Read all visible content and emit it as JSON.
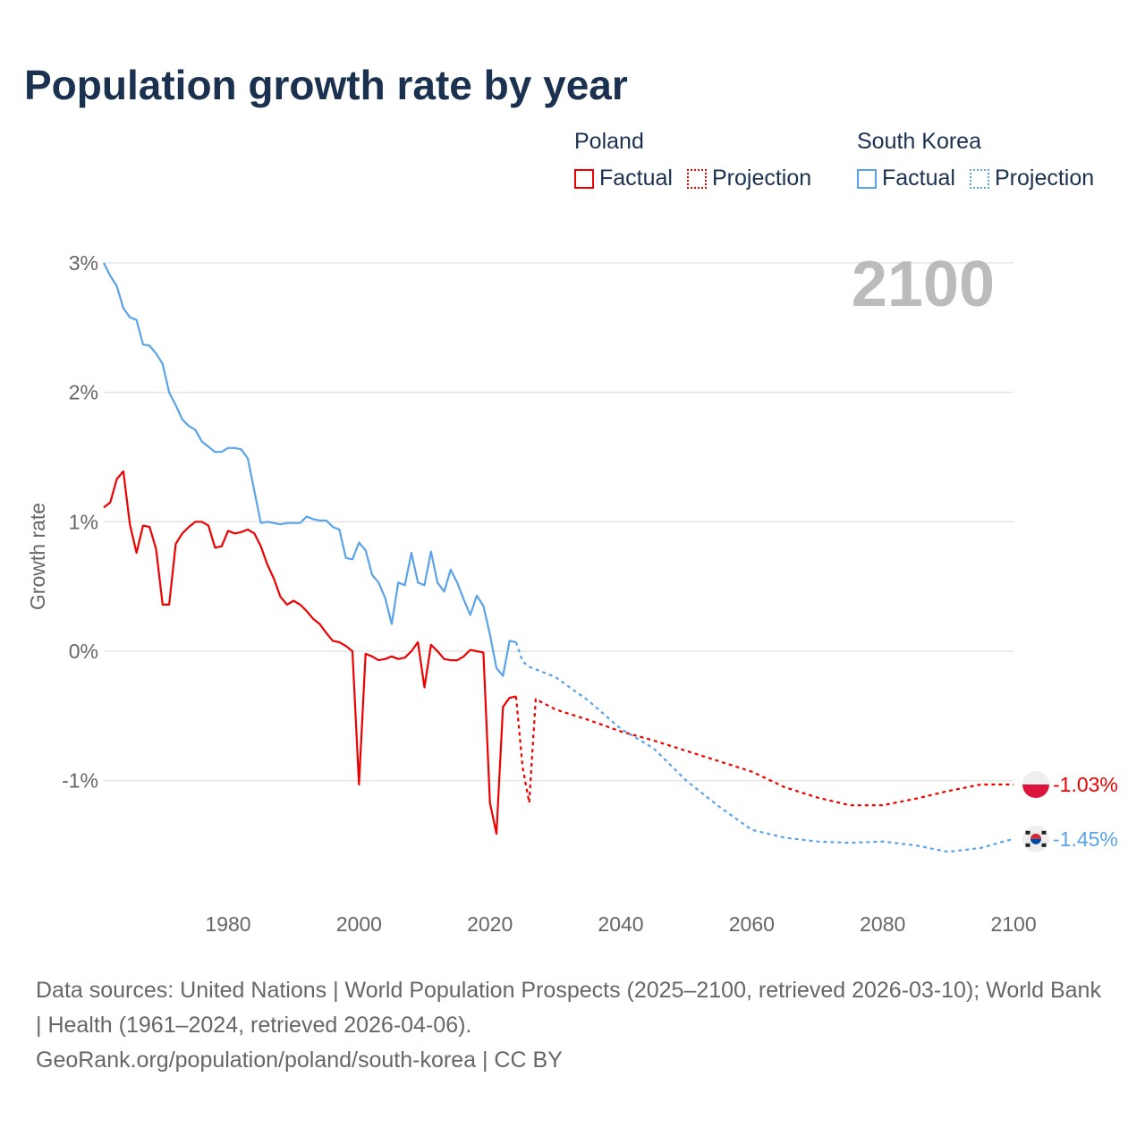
{
  "title": "Population growth rate by year",
  "year_label": "2100",
  "legend": [
    {
      "group": "Poland",
      "color": "#ee0000",
      "factual": "Factual",
      "projection": "Projection"
    },
    {
      "group": "South Korea",
      "color": "#5ba3e8",
      "factual": "Factual",
      "projection": "Projection"
    }
  ],
  "footer": {
    "sources": "Data sources: United Nations | World Population Prospects (2025–2100, retrieved 2026-03-10); World Bank | Health (1961–2024, retrieved 2026-04-06).",
    "link": "GeoRank.org/population/poland/south-korea | CC BY"
  },
  "chart_data": {
    "type": "line",
    "title": "Population growth rate by year",
    "xlabel": "",
    "ylabel": "Growth rate",
    "xlim": [
      1961,
      2100
    ],
    "ylim": [
      -1.85,
      3.0
    ],
    "x_ticks": [
      "1980",
      "2000",
      "2020",
      "2040",
      "2060",
      "2080",
      "2100"
    ],
    "y_ticks": [
      {
        "v": 3,
        "label": "3%"
      },
      {
        "v": 2,
        "label": "2%"
      },
      {
        "v": 1,
        "label": "1%"
      },
      {
        "v": 0,
        "label": "0%"
      },
      {
        "v": -1,
        "label": "-1%"
      }
    ],
    "grid": true,
    "series": [
      {
        "name": "Poland",
        "kind": "factual",
        "color": "#ee0000",
        "x": [
          1961,
          1962,
          1963,
          1964,
          1965,
          1966,
          1967,
          1968,
          1969,
          1970,
          1971,
          1972,
          1973,
          1974,
          1975,
          1976,
          1977,
          1978,
          1979,
          1980,
          1981,
          1982,
          1983,
          1984,
          1985,
          1986,
          1987,
          1988,
          1989,
          1990,
          1991,
          1992,
          1993,
          1994,
          1995,
          1996,
          1997,
          1998,
          1999,
          2000,
          2001,
          2002,
          2003,
          2004,
          2005,
          2006,
          2007,
          2008,
          2009,
          2010,
          2011,
          2012,
          2013,
          2014,
          2015,
          2016,
          2017,
          2018,
          2019,
          2020,
          2021,
          2022,
          2023,
          2024
        ],
        "y": [
          1.11,
          1.15,
          1.33,
          1.39,
          0.98,
          0.76,
          0.97,
          0.96,
          0.79,
          0.36,
          0.36,
          0.83,
          0.91,
          0.96,
          1.0,
          1.0,
          0.97,
          0.8,
          0.81,
          0.93,
          0.91,
          0.92,
          0.94,
          0.91,
          0.81,
          0.67,
          0.56,
          0.42,
          0.36,
          0.39,
          0.36,
          0.31,
          0.25,
          0.21,
          0.14,
          0.08,
          0.07,
          0.04,
          0.0,
          -1.03,
          -0.02,
          -0.04,
          -0.07,
          -0.06,
          -0.04,
          -0.06,
          -0.05,
          0.0,
          0.07,
          -0.28,
          0.05,
          0.0,
          -0.06,
          -0.07,
          -0.07,
          -0.04,
          0.01,
          0.0,
          -0.01,
          -1.17,
          -1.41,
          -0.43,
          -0.36,
          -0.35
        ]
      },
      {
        "name": "Poland",
        "kind": "projection",
        "color": "#ee0000",
        "x": [
          2024,
          2025,
          2026,
          2027,
          2030,
          2035,
          2040,
          2045,
          2050,
          2055,
          2060,
          2065,
          2070,
          2075,
          2080,
          2085,
          2090,
          2095,
          2100
        ],
        "y": [
          -0.35,
          -0.9,
          -1.17,
          -0.37,
          -0.45,
          -0.53,
          -0.62,
          -0.69,
          -0.77,
          -0.85,
          -0.93,
          -1.05,
          -1.13,
          -1.19,
          -1.19,
          -1.14,
          -1.08,
          -1.03,
          -1.03
        ]
      },
      {
        "name": "South Korea",
        "kind": "factual",
        "color": "#5ba3e8",
        "x": [
          1961,
          1962,
          1963,
          1964,
          1965,
          1966,
          1967,
          1968,
          1969,
          1970,
          1971,
          1972,
          1973,
          1974,
          1975,
          1976,
          1977,
          1978,
          1979,
          1980,
          1981,
          1982,
          1983,
          1984,
          1985,
          1986,
          1987,
          1988,
          1989,
          1990,
          1991,
          1992,
          1993,
          1994,
          1995,
          1996,
          1997,
          1998,
          1999,
          2000,
          2001,
          2002,
          2003,
          2004,
          2005,
          2006,
          2007,
          2008,
          2009,
          2010,
          2011,
          2012,
          2013,
          2014,
          2015,
          2016,
          2017,
          2018,
          2019,
          2020,
          2021,
          2022,
          2023,
          2024
        ],
        "y": [
          3.0,
          2.9,
          2.82,
          2.65,
          2.58,
          2.56,
          2.37,
          2.36,
          2.3,
          2.22,
          2.0,
          1.9,
          1.79,
          1.74,
          1.71,
          1.62,
          1.58,
          1.54,
          1.54,
          1.57,
          1.57,
          1.56,
          1.49,
          1.24,
          0.99,
          1.0,
          0.99,
          0.98,
          0.99,
          0.99,
          0.99,
          1.04,
          1.02,
          1.01,
          1.01,
          0.96,
          0.94,
          0.72,
          0.71,
          0.84,
          0.78,
          0.59,
          0.53,
          0.41,
          0.21,
          0.53,
          0.51,
          0.76,
          0.53,
          0.51,
          0.77,
          0.53,
          0.46,
          0.63,
          0.53,
          0.4,
          0.28,
          0.43,
          0.35,
          0.13,
          -0.13,
          -0.19,
          0.08,
          0.07
        ]
      },
      {
        "name": "South Korea",
        "kind": "projection",
        "color": "#5ba3e8",
        "x": [
          2024,
          2025,
          2026,
          2030,
          2035,
          2040,
          2045,
          2050,
          2055,
          2060,
          2065,
          2070,
          2075,
          2080,
          2085,
          2090,
          2095,
          2100
        ],
        "y": [
          0.07,
          -0.08,
          -0.12,
          -0.2,
          -0.38,
          -0.6,
          -0.75,
          -1.0,
          -1.2,
          -1.38,
          -1.44,
          -1.47,
          -1.48,
          -1.47,
          -1.5,
          -1.55,
          -1.52,
          -1.45
        ]
      }
    ],
    "end_labels": [
      {
        "name": "Poland",
        "label": "-1.03%",
        "value": -1.03,
        "color": "#ee0000"
      },
      {
        "name": "South Korea",
        "label": "-1.45%",
        "value": -1.45,
        "color": "#5ba3e8"
      }
    ]
  }
}
